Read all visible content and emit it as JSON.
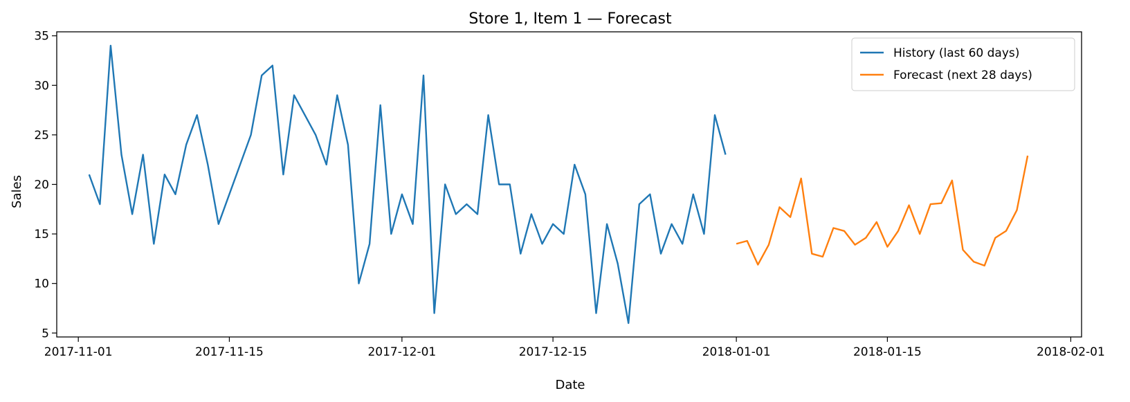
{
  "chart_data": {
    "type": "line",
    "title": "Store 1, Item 1 — Forecast",
    "xlabel": "Date",
    "ylabel": "Sales",
    "xlim": [
      "2017-10-30",
      "2018-02-02"
    ],
    "ylim": [
      4.6,
      35.4
    ],
    "x_ticks": [
      "2017-11-01",
      "2017-11-15",
      "2017-12-01",
      "2017-12-15",
      "2018-01-01",
      "2018-01-15",
      "2018-02-01"
    ],
    "y_ticks": [
      5,
      10,
      15,
      20,
      25,
      30,
      35
    ],
    "grid": false,
    "legend_position": "top-right",
    "series": [
      {
        "name": "History (last 60 days)",
        "color": "#1f77b4",
        "x": [
          "2017-11-02",
          "2017-11-03",
          "2017-11-04",
          "2017-11-05",
          "2017-11-06",
          "2017-11-07",
          "2017-11-08",
          "2017-11-09",
          "2017-11-10",
          "2017-11-11",
          "2017-11-12",
          "2017-11-13",
          "2017-11-14",
          "2017-11-15",
          "2017-11-16",
          "2017-11-17",
          "2017-11-18",
          "2017-11-19",
          "2017-11-20",
          "2017-11-21",
          "2017-11-22",
          "2017-11-23",
          "2017-11-24",
          "2017-11-25",
          "2017-11-26",
          "2017-11-27",
          "2017-11-28",
          "2017-11-29",
          "2017-11-30",
          "2017-12-01",
          "2017-12-02",
          "2017-12-03",
          "2017-12-04",
          "2017-12-05",
          "2017-12-06",
          "2017-12-07",
          "2017-12-08",
          "2017-12-09",
          "2017-12-10",
          "2017-12-11",
          "2017-12-12",
          "2017-12-13",
          "2017-12-14",
          "2017-12-15",
          "2017-12-16",
          "2017-12-17",
          "2017-12-18",
          "2017-12-19",
          "2017-12-20",
          "2017-12-21",
          "2017-12-22",
          "2017-12-23",
          "2017-12-24",
          "2017-12-25",
          "2017-12-26",
          "2017-12-27",
          "2017-12-28",
          "2017-12-29",
          "2017-12-30",
          "2017-12-31"
        ],
        "y": [
          21,
          18,
          34,
          23,
          17,
          23,
          14,
          21,
          19,
          24,
          27,
          22,
          16,
          19,
          22,
          25,
          31,
          32,
          21,
          29,
          27,
          25,
          22,
          29,
          24,
          10,
          14,
          28,
          15,
          19,
          16,
          31,
          7,
          20,
          17,
          18,
          17,
          27,
          20,
          20,
          13,
          17,
          14,
          16,
          15,
          22,
          19,
          7,
          16,
          12,
          6,
          18,
          19,
          13,
          16,
          14,
          19,
          15,
          27,
          23
        ]
      },
      {
        "name": "Forecast (next 28 days)",
        "color": "#ff7f0e",
        "x": [
          "2018-01-01",
          "2018-01-02",
          "2018-01-03",
          "2018-01-04",
          "2018-01-05",
          "2018-01-06",
          "2018-01-07",
          "2018-01-08",
          "2018-01-09",
          "2018-01-10",
          "2018-01-11",
          "2018-01-12",
          "2018-01-13",
          "2018-01-14",
          "2018-01-15",
          "2018-01-16",
          "2018-01-17",
          "2018-01-18",
          "2018-01-19",
          "2018-01-20",
          "2018-01-21",
          "2018-01-22",
          "2018-01-23",
          "2018-01-24",
          "2018-01-25",
          "2018-01-26",
          "2018-01-27",
          "2018-01-28"
        ],
        "y": [
          14.0,
          14.3,
          11.9,
          13.9,
          17.7,
          16.7,
          20.6,
          13.0,
          12.7,
          15.6,
          15.3,
          13.9,
          14.6,
          16.2,
          13.7,
          15.3,
          17.9,
          15.0,
          18.0,
          18.1,
          20.4,
          13.4,
          12.2,
          11.8,
          14.6,
          15.3,
          17.4,
          22.9
        ]
      }
    ]
  }
}
